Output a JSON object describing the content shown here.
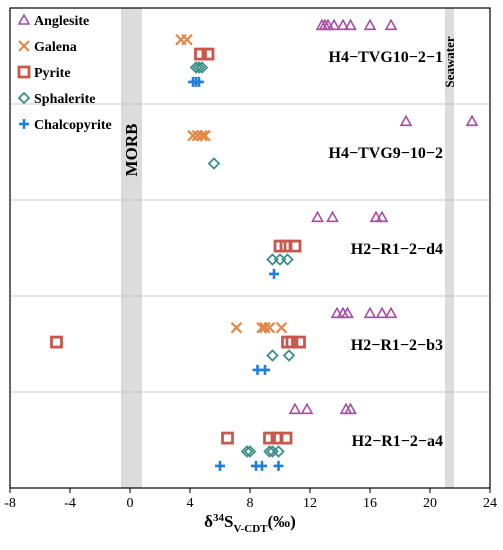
{
  "chart_data": {
    "type": "scatter",
    "x_axis": {
      "label_main": "δ",
      "label_sup": "34",
      "label_base": "S",
      "label_sub": "V-CDT",
      "label_unit": "(‰)",
      "range": [
        -8,
        24
      ],
      "ticks": [
        "-8",
        "-4",
        "0",
        "4",
        "8",
        "12",
        "16",
        "20",
        "24"
      ]
    },
    "reference_bands": [
      {
        "name": "MORB",
        "x_from": -0.6,
        "x_to": 0.8
      },
      {
        "name": "Seawater",
        "x_from": 21.0,
        "x_to": 21.6
      }
    ],
    "legend": {
      "placement": "top-left",
      "entries": [
        {
          "name": "Anglesite",
          "marker": "triangle",
          "color": "#a54ca2"
        },
        {
          "name": "Galena",
          "marker": "cross",
          "color": "#e0894a"
        },
        {
          "name": "Pyrite",
          "marker": "square",
          "color": "#c8584c"
        },
        {
          "name": "Sphalerite",
          "marker": "diamond",
          "color": "#3a8f86"
        },
        {
          "name": "Chalcopyrite",
          "marker": "plus",
          "color": "#1f7fdc"
        }
      ]
    },
    "samples": [
      {
        "name": "H4−TVG10−2−1",
        "series": {
          "Anglesite": [
            12.8,
            13.0,
            13.2,
            13.6,
            14.2,
            14.7,
            16.0,
            17.4
          ],
          "Galena": [
            3.4,
            3.8
          ],
          "Pyrite": [
            4.7,
            5.2
          ],
          "Sphalerite": [
            4.4,
            4.6,
            4.8
          ],
          "Chalcopyrite": [
            4.2,
            4.4,
            4.6
          ]
        }
      },
      {
        "name": "H4−TVG9−10−2",
        "series": {
          "Anglesite": [
            18.4,
            22.8
          ],
          "Galena": [
            4.2,
            4.5,
            4.8,
            5.0
          ],
          "Pyrite": [],
          "Sphalerite": [
            5.6
          ],
          "Chalcopyrite": []
        }
      },
      {
        "name": "H2−R1−2−d4",
        "series": {
          "Anglesite": [
            12.5,
            13.5,
            16.4,
            16.8
          ],
          "Galena": [],
          "Pyrite": [
            10.0,
            10.4,
            11.0
          ],
          "Sphalerite": [
            9.5,
            10.0,
            10.5
          ],
          "Chalcopyrite": [
            9.6
          ]
        }
      },
      {
        "name": "H2−R1−2−b3",
        "series": {
          "Anglesite": [
            13.8,
            14.2,
            14.5,
            16.0,
            16.8,
            17.4
          ],
          "Galena": [
            7.1,
            8.8,
            9.0,
            9.3,
            10.1
          ],
          "Pyrite": [
            -4.9,
            10.5,
            10.8,
            11.3
          ],
          "Sphalerite": [
            9.5,
            10.6
          ],
          "Chalcopyrite": [
            8.5,
            9.0
          ]
        }
      },
      {
        "name": "H2−R1−2−a4",
        "series": {
          "Anglesite": [
            11.0,
            11.8,
            14.4,
            14.7
          ],
          "Galena": [],
          "Pyrite": [
            6.5,
            9.3,
            9.8,
            10.4
          ],
          "Sphalerite": [
            7.8,
            8.0,
            9.3,
            9.5,
            9.9
          ],
          "Chalcopyrite": [
            6.0,
            8.4,
            8.8,
            9.9
          ]
        }
      }
    ]
  }
}
